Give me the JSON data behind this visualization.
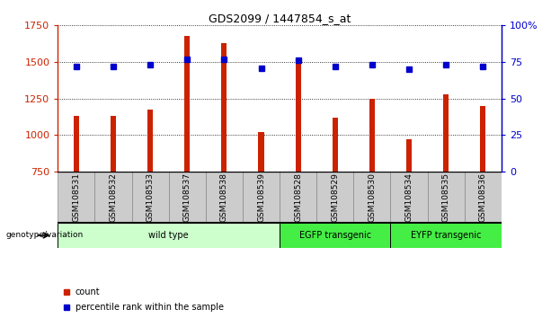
{
  "title": "GDS2099 / 1447854_s_at",
  "samples": [
    "GSM108531",
    "GSM108532",
    "GSM108533",
    "GSM108537",
    "GSM108538",
    "GSM108539",
    "GSM108528",
    "GSM108529",
    "GSM108530",
    "GSM108534",
    "GSM108535",
    "GSM108536"
  ],
  "counts": [
    1130,
    1130,
    1175,
    1680,
    1630,
    1020,
    1490,
    1120,
    1250,
    975,
    1280,
    1200
  ],
  "percentiles": [
    72,
    72,
    73,
    77,
    77,
    71,
    76,
    72,
    73,
    70,
    73,
    72
  ],
  "groups": [
    {
      "label": "wild type",
      "start": 0,
      "end": 6,
      "color": "#ccffcc"
    },
    {
      "label": "EGFP transgenic",
      "start": 6,
      "end": 9,
      "color": "#44ee44"
    },
    {
      "label": "EYFP transgenic",
      "start": 9,
      "end": 12,
      "color": "#44ee44"
    }
  ],
  "ylim_left": [
    750,
    1750
  ],
  "ylim_right": [
    0,
    100
  ],
  "yticks_left": [
    750,
    1000,
    1250,
    1500,
    1750
  ],
  "yticks_right": [
    0,
    25,
    50,
    75,
    100
  ],
  "bar_color": "#cc2200",
  "dot_color": "#0000cc",
  "tick_color_left": "#cc2200",
  "tick_color_right": "#0000cc",
  "sample_box_color": "#cccccc",
  "sample_box_edge": "#888888",
  "group_band_edge": "#000000"
}
